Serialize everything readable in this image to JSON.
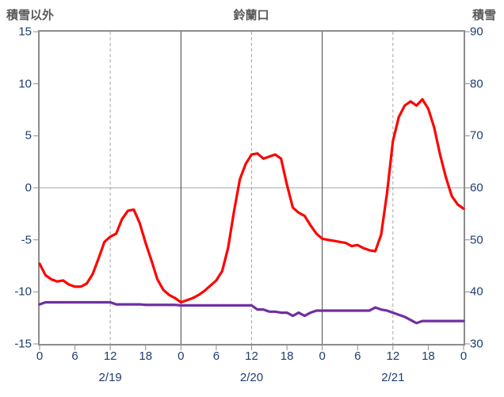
{
  "chart_data": {
    "type": "line",
    "title": "鈴蘭口",
    "x_hours_span": 72,
    "x_tick_hours": [
      0,
      6,
      12,
      18,
      24,
      30,
      36,
      42,
      48,
      54,
      60,
      66,
      72
    ],
    "x_tick_labels": [
      "0",
      "6",
      "12",
      "18",
      "0",
      "6",
      "12",
      "18",
      "0",
      "6",
      "12",
      "18",
      "0"
    ],
    "date_labels": [
      {
        "label": "2/19",
        "hour": 12
      },
      {
        "label": "2/20",
        "hour": 36
      },
      {
        "label": "2/21",
        "hour": 60
      }
    ],
    "left_axis": {
      "title": "積雪以外",
      "min": -15,
      "max": 15,
      "ticks": [
        15,
        10,
        5,
        0,
        -5,
        -10,
        -15
      ]
    },
    "right_axis": {
      "title": "積雪",
      "min": 30,
      "max": 90,
      "ticks": [
        90,
        80,
        70,
        60,
        50,
        40,
        30
      ]
    },
    "gridlines": {
      "horizontal_left_values": [
        0
      ],
      "solid_vertical_hours": [
        24,
        48
      ],
      "dashed_vertical_hours": [
        12,
        36,
        60
      ]
    },
    "series": [
      {
        "name": "積雪以外",
        "axis": "left",
        "color": "#ff0000",
        "values": [
          -7.3,
          -8.4,
          -8.8,
          -9.0,
          -8.9,
          -9.3,
          -9.5,
          -9.5,
          -9.2,
          -8.3,
          -6.8,
          -5.2,
          -4.7,
          -4.4,
          -3.0,
          -2.2,
          -2.1,
          -3.4,
          -5.3,
          -7.0,
          -8.8,
          -9.8,
          -10.3,
          -10.6,
          -11.0,
          -10.8,
          -10.6,
          -10.3,
          -9.9,
          -9.4,
          -8.9,
          -8.0,
          -5.8,
          -2.3,
          0.8,
          2.3,
          3.2,
          3.3,
          2.8,
          3.0,
          3.2,
          2.8,
          0.3,
          -1.9,
          -2.4,
          -2.7,
          -3.6,
          -4.4,
          -4.9,
          -5.0,
          -5.1,
          -5.2,
          -5.3,
          -5.6,
          -5.5,
          -5.8,
          -6.0,
          -6.1,
          -4.5,
          -0.5,
          4.5,
          6.8,
          7.9,
          8.3,
          7.9,
          8.5,
          7.6,
          5.8,
          3.2,
          1.0,
          -0.8,
          -1.6,
          -2.0
        ]
      },
      {
        "name": "積雪",
        "axis": "right",
        "color": "#7030a0",
        "values": [
          37.6,
          38.0,
          38.0,
          38.0,
          38.0,
          38.0,
          38.0,
          38.0,
          38.0,
          38.0,
          38.0,
          38.0,
          38.0,
          37.6,
          37.6,
          37.6,
          37.6,
          37.6,
          37.5,
          37.5,
          37.5,
          37.5,
          37.5,
          37.5,
          37.4,
          37.4,
          37.4,
          37.4,
          37.4,
          37.4,
          37.4,
          37.4,
          37.4,
          37.4,
          37.4,
          37.4,
          37.4,
          36.6,
          36.6,
          36.2,
          36.2,
          36.0,
          36.0,
          35.4,
          36.0,
          35.4,
          36.0,
          36.4,
          36.4,
          36.4,
          36.4,
          36.4,
          36.4,
          36.4,
          36.4,
          36.4,
          36.4,
          37.0,
          36.6,
          36.4,
          36.0,
          35.6,
          35.2,
          34.6,
          34.0,
          34.4,
          34.4,
          34.4,
          34.4,
          34.4,
          34.4,
          34.4,
          34.4
        ]
      }
    ]
  }
}
